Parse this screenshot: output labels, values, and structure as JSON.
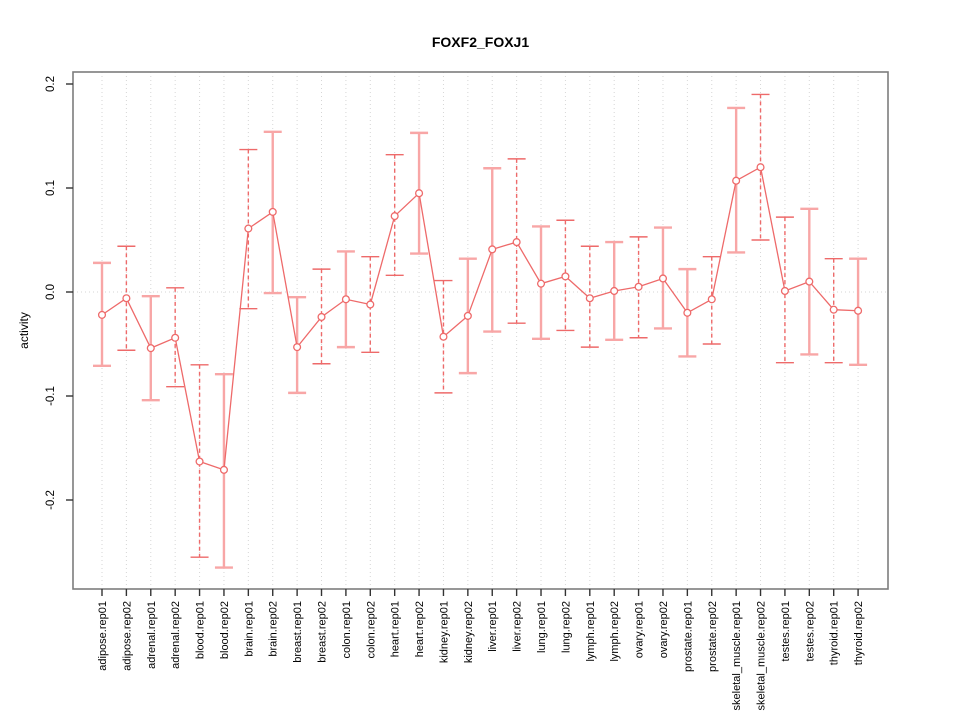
{
  "title": "FOXF2_FOXJ1",
  "colors": {
    "accent": "#ee6a6a",
    "light_bar": "#f8a6a6",
    "grid": "#d6d6d6",
    "axis_box": "#7d7d7d",
    "tick": "#333333",
    "text": "#000000",
    "background": "#ffffff"
  },
  "chart_data": {
    "type": "scatter",
    "title": "FOXF2_FOXJ1",
    "xlabel": "",
    "ylabel": "activity",
    "ylim": [
      -0.286,
      0.212
    ],
    "yticks": [
      0.2,
      0.1,
      0.0,
      -0.1,
      -0.2
    ],
    "grid": "vertical dotted gridline at every category; dotted horizontal line at y=0",
    "legend": "none",
    "marker": "open-circle with error bars (caps), points joined by line",
    "categories": [
      "adipose.rep01",
      "adipose.rep02",
      "adrenal.rep01",
      "adrenal.rep02",
      "blood.rep01",
      "blood.rep02",
      "brain.rep01",
      "brain.rep02",
      "breast.rep01",
      "breast.rep02",
      "colon.rep01",
      "colon.rep02",
      "heart.rep01",
      "heart.rep02",
      "kidney.rep01",
      "kidney.rep02",
      "liver.rep01",
      "liver.rep02",
      "lung.rep01",
      "lung.rep02",
      "lymph.rep01",
      "lymph.rep02",
      "ovary.rep01",
      "ovary.rep02",
      "prostate.rep01",
      "prostate.rep02",
      "skeletal_muscle.rep01",
      "skeletal_muscle.rep02",
      "testes.rep01",
      "testes.rep02",
      "thyroid.rep01",
      "thyroid.rep02"
    ],
    "points": [
      {
        "label": "adipose.rep01",
        "value": -0.022,
        "lo": -0.071,
        "hi": 0.028,
        "stem": "solid"
      },
      {
        "label": "adipose.rep02",
        "value": -0.006,
        "lo": -0.056,
        "hi": 0.044,
        "stem": "dashed"
      },
      {
        "label": "adrenal.rep01",
        "value": -0.054,
        "lo": -0.104,
        "hi": -0.004,
        "stem": "solid"
      },
      {
        "label": "adrenal.rep02",
        "value": -0.044,
        "lo": -0.091,
        "hi": 0.004,
        "stem": "dashed"
      },
      {
        "label": "blood.rep01",
        "value": -0.163,
        "lo": -0.255,
        "hi": -0.07,
        "stem": "dashed"
      },
      {
        "label": "blood.rep02",
        "value": -0.171,
        "lo": -0.265,
        "hi": -0.079,
        "stem": "solid"
      },
      {
        "label": "brain.rep01",
        "value": 0.061,
        "lo": -0.016,
        "hi": 0.137,
        "stem": "dashed"
      },
      {
        "label": "brain.rep02",
        "value": 0.077,
        "lo": -0.001,
        "hi": 0.154,
        "stem": "solid"
      },
      {
        "label": "breast.rep01",
        "value": -0.053,
        "lo": -0.097,
        "hi": -0.005,
        "stem": "solid"
      },
      {
        "label": "breast.rep02",
        "value": -0.024,
        "lo": -0.069,
        "hi": 0.022,
        "stem": "dashed"
      },
      {
        "label": "colon.rep01",
        "value": -0.007,
        "lo": -0.053,
        "hi": 0.039,
        "stem": "solid"
      },
      {
        "label": "colon.rep02",
        "value": -0.012,
        "lo": -0.058,
        "hi": 0.034,
        "stem": "dashed"
      },
      {
        "label": "heart.rep01",
        "value": 0.073,
        "lo": 0.016,
        "hi": 0.132,
        "stem": "dashed"
      },
      {
        "label": "heart.rep02",
        "value": 0.095,
        "lo": 0.037,
        "hi": 0.153,
        "stem": "solid"
      },
      {
        "label": "kidney.rep01",
        "value": -0.043,
        "lo": -0.097,
        "hi": 0.011,
        "stem": "dashed"
      },
      {
        "label": "kidney.rep02",
        "value": -0.023,
        "lo": -0.078,
        "hi": 0.032,
        "stem": "solid"
      },
      {
        "label": "liver.rep01",
        "value": 0.041,
        "lo": -0.038,
        "hi": 0.119,
        "stem": "solid"
      },
      {
        "label": "liver.rep02",
        "value": 0.048,
        "lo": -0.03,
        "hi": 0.128,
        "stem": "dashed"
      },
      {
        "label": "lung.rep01",
        "value": 0.008,
        "lo": -0.045,
        "hi": 0.063,
        "stem": "solid"
      },
      {
        "label": "lung.rep02",
        "value": 0.015,
        "lo": -0.037,
        "hi": 0.069,
        "stem": "dashed"
      },
      {
        "label": "lymph.rep01",
        "value": -0.006,
        "lo": -0.053,
        "hi": 0.044,
        "stem": "dashed"
      },
      {
        "label": "lymph.rep02",
        "value": 0.001,
        "lo": -0.046,
        "hi": 0.048,
        "stem": "solid"
      },
      {
        "label": "ovary.rep01",
        "value": 0.005,
        "lo": -0.044,
        "hi": 0.053,
        "stem": "dashed"
      },
      {
        "label": "ovary.rep02",
        "value": 0.013,
        "lo": -0.035,
        "hi": 0.062,
        "stem": "solid"
      },
      {
        "label": "prostate.rep01",
        "value": -0.02,
        "lo": -0.062,
        "hi": 0.022,
        "stem": "solid"
      },
      {
        "label": "prostate.rep02",
        "value": -0.007,
        "lo": -0.05,
        "hi": 0.034,
        "stem": "dashed"
      },
      {
        "label": "skeletal_muscle.rep01",
        "value": 0.107,
        "lo": 0.038,
        "hi": 0.177,
        "stem": "solid"
      },
      {
        "label": "skeletal_muscle.rep02",
        "value": 0.12,
        "lo": 0.05,
        "hi": 0.19,
        "stem": "dashed"
      },
      {
        "label": "testes.rep01",
        "value": 0.001,
        "lo": -0.068,
        "hi": 0.072,
        "stem": "dashed"
      },
      {
        "label": "testes.rep02",
        "value": 0.01,
        "lo": -0.06,
        "hi": 0.08,
        "stem": "solid"
      },
      {
        "label": "thyroid.rep01",
        "value": -0.017,
        "lo": -0.068,
        "hi": 0.032,
        "stem": "dashed"
      },
      {
        "label": "thyroid.rep02",
        "value": -0.018,
        "lo": -0.07,
        "hi": 0.032,
        "stem": "solid"
      }
    ]
  }
}
